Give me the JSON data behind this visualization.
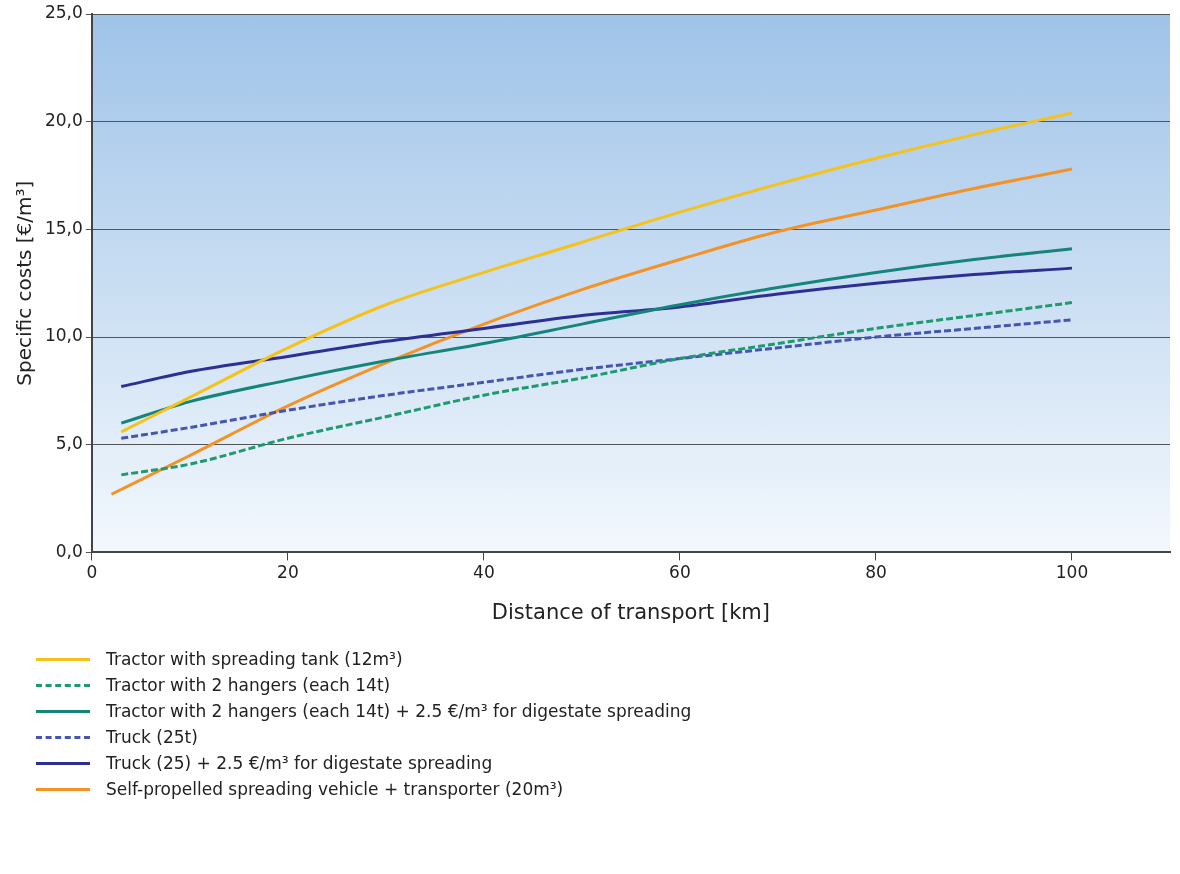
{
  "chart_data": {
    "type": "line",
    "xlabel": "Distance of transport [km]",
    "ylabel": "Specific costs [€/m³]",
    "x": [
      3,
      10,
      20,
      30,
      40,
      50,
      60,
      70,
      80,
      90,
      100
    ],
    "xlim": [
      0,
      110
    ],
    "xticks": [
      0,
      20,
      40,
      60,
      80,
      100
    ],
    "ylim": [
      0,
      25
    ],
    "yticks": [
      {
        "value": 0,
        "label": "0,0"
      },
      {
        "value": 5,
        "label": "5,0"
      },
      {
        "value": 10,
        "label": "10,0"
      },
      {
        "value": 15,
        "label": "15,0"
      },
      {
        "value": 20,
        "label": "20,0"
      },
      {
        "value": 25,
        "label": "25,0"
      }
    ],
    "grid": "y",
    "legend": "bottom",
    "marker": "none",
    "series": [
      {
        "name": "Tractor with spreading tank (12m³)",
        "color": "#f5c21b",
        "line_style": "solid",
        "values": [
          5.6,
          7.2,
          9.5,
          11.5,
          13.0,
          14.4,
          15.8,
          17.1,
          18.3,
          19.4,
          20.4
        ]
      },
      {
        "name": "Tractor with 2 hangers (each 14t)",
        "color": "#1e9a6e",
        "line_style": "dashed",
        "values": [
          3.6,
          4.1,
          5.3,
          6.3,
          7.3,
          8.1,
          9.0,
          9.7,
          10.4,
          11.0,
          11.6
        ]
      },
      {
        "name": "Tractor with 2 hangers (each 14t) + 2.5 €/m³ for digestate spreading",
        "color": "#15857c",
        "line_style": "solid",
        "values": [
          6.0,
          7.0,
          8.0,
          8.9,
          9.7,
          10.6,
          11.5,
          12.3,
          13.0,
          13.6,
          14.1
        ]
      },
      {
        "name": "Truck (25t)",
        "color": "#4655b0",
        "line_style": "dashed",
        "values": [
          5.3,
          5.8,
          6.6,
          7.3,
          7.9,
          8.5,
          9.0,
          9.5,
          10.0,
          10.4,
          10.8
        ]
      },
      {
        "name": "Truck (25) + 2.5 €/m³ for digestate spreading",
        "color": "#2e2f94",
        "line_style": "solid",
        "values": [
          7.7,
          8.4,
          9.1,
          9.8,
          10.4,
          11.0,
          11.4,
          12.0,
          12.5,
          12.9,
          13.2
        ]
      },
      {
        "name": "Self-propelled spreading vehicle + transporter (20m³)",
        "x": [
          2,
          10,
          20,
          30,
          40,
          50,
          60,
          70,
          80,
          90,
          100
        ],
        "color": "#f39325",
        "line_style": "solid",
        "values": [
          2.7,
          4.5,
          6.8,
          8.8,
          10.6,
          12.2,
          13.6,
          14.9,
          15.9,
          16.9,
          17.8
        ]
      }
    ]
  }
}
